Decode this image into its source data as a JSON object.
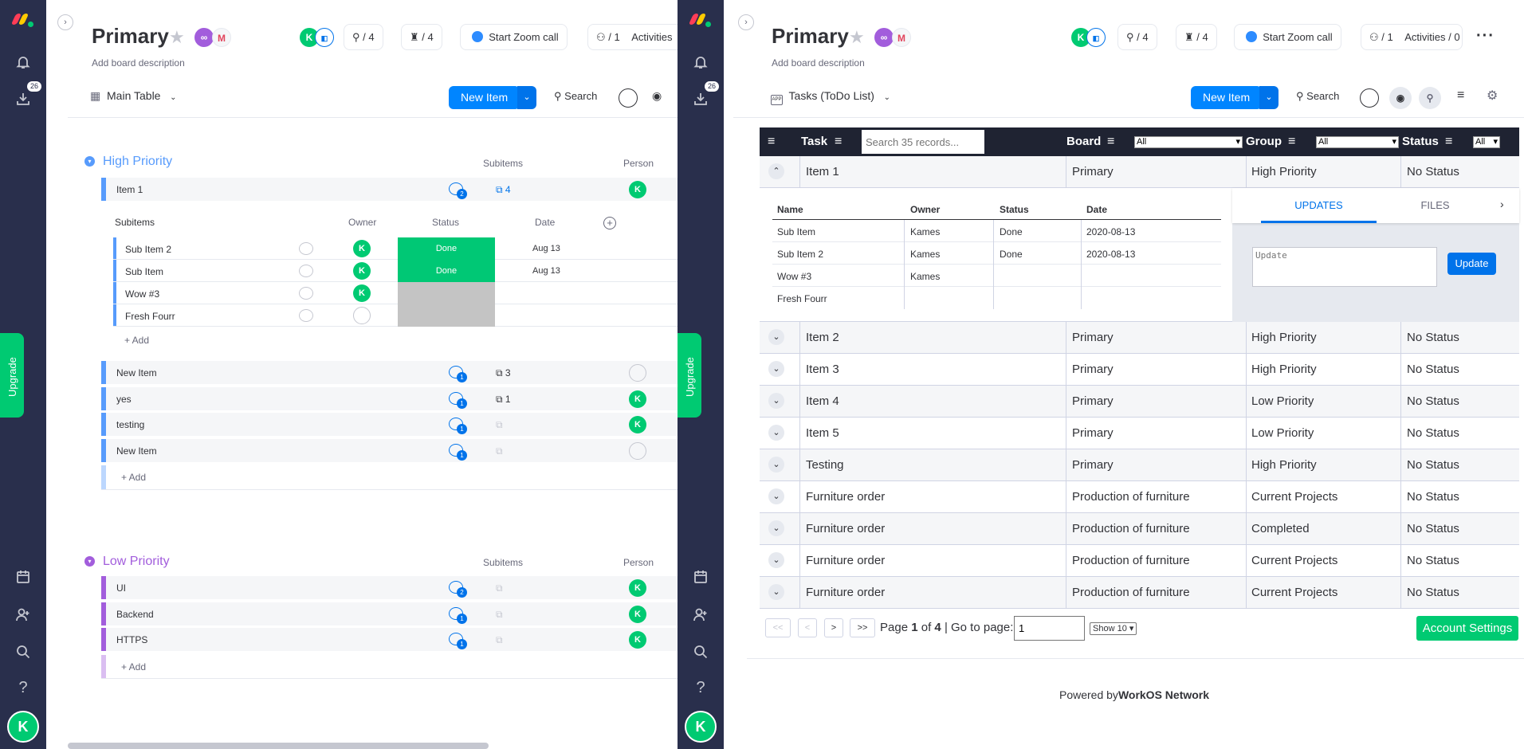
{
  "left": {
    "board_title": "Primary",
    "description": "Add board description",
    "avatar_initial": "K",
    "integrations_count": "/ 4",
    "automations_count": "/ 4",
    "zoom_label": "Start Zoom call",
    "members_count": "/ 1",
    "activities_label": "Activities",
    "view_label": "Main Table",
    "new_item": "New Item",
    "search": "Search",
    "badge": "26",
    "upgrade": "Upgrade",
    "groups": [
      {
        "title": "High Priority",
        "col_subitems": "Subitems",
        "col_person": "Person",
        "items": [
          {
            "name": "Item 1",
            "comments": "2",
            "subitems": "4"
          },
          {
            "name": "New Item",
            "comments": "1",
            "subitems": "3"
          },
          {
            "name": "yes",
            "comments": "1",
            "subitems": "1"
          },
          {
            "name": "testing",
            "comments": "1",
            "subitems": ""
          },
          {
            "name": "New Item",
            "comments": "1",
            "subitems": ""
          }
        ],
        "add": "+ Add"
      },
      {
        "title": "Low Priority",
        "col_subitems": "Subitems",
        "col_person": "Person",
        "items": [
          {
            "name": "UI",
            "comments": "2"
          },
          {
            "name": "Backend",
            "comments": "1"
          },
          {
            "name": "HTTPS",
            "comments": "1"
          }
        ],
        "add": "+ Add"
      }
    ],
    "subitems": {
      "headers": {
        "name": "Subitems",
        "owner": "Owner",
        "status": "Status",
        "date": "Date"
      },
      "rows": [
        {
          "name": "Sub Item 2",
          "status": "Done",
          "date": "Aug 13"
        },
        {
          "name": "Sub Item",
          "status": "Done",
          "date": "Aug 13"
        },
        {
          "name": "Wow #3",
          "status": "",
          "date": ""
        },
        {
          "name": "Fresh Fourr",
          "status": "",
          "date": ""
        }
      ],
      "add": "+ Add"
    }
  },
  "right": {
    "board_title": "Primary",
    "description": "Add board description",
    "avatar_initial": "K",
    "integrations_count": "/ 4",
    "automations_count": "/ 4",
    "zoom_label": "Start Zoom call",
    "members_count": "/ 1",
    "activities_label": "Activities / 0",
    "view_label": "Tasks (ToDo List)",
    "new_item": "New Item",
    "search": "Search",
    "badge": "26",
    "upgrade": "Upgrade",
    "table": {
      "headers": {
        "task": "Task",
        "board": "Board",
        "group": "Group",
        "status": "Status"
      },
      "search_placeholder": "Search 35 records...",
      "filter_all": "All",
      "rows": [
        {
          "task": "Item 1",
          "board": "Primary",
          "group": "High Priority",
          "status": "No Status"
        },
        {
          "task": "Item 2",
          "board": "Primary",
          "group": "High Priority",
          "status": "No Status"
        },
        {
          "task": "Item 3",
          "board": "Primary",
          "group": "High Priority",
          "status": "No Status"
        },
        {
          "task": "Item 4",
          "board": "Primary",
          "group": "Low Priority",
          "status": "No Status"
        },
        {
          "task": "Item 5",
          "board": "Primary",
          "group": "Low Priority",
          "status": "No Status"
        },
        {
          "task": "Testing",
          "board": "Primary",
          "group": "High Priority",
          "status": "No Status"
        },
        {
          "task": "Furniture order",
          "board": "Production of furniture",
          "group": "Current Projects",
          "status": "No Status"
        },
        {
          "task": "Furniture order",
          "board": "Production of furniture",
          "group": "Completed",
          "status": "No Status"
        },
        {
          "task": "Furniture order",
          "board": "Production of furniture",
          "group": "Current Projects",
          "status": "No Status"
        },
        {
          "task": "Furniture order",
          "board": "Production of furniture",
          "group": "Current Projects",
          "status": "No Status"
        }
      ],
      "expanded": {
        "headers": {
          "name": "Name",
          "owner": "Owner",
          "status": "Status",
          "date": "Date"
        },
        "rows": [
          {
            "name": "Sub Item",
            "owner": "Kames",
            "status": "Done",
            "date": "2020-08-13"
          },
          {
            "name": "Sub Item 2",
            "owner": "Kames",
            "status": "Done",
            "date": "2020-08-13"
          },
          {
            "name": "Wow #3",
            "owner": "Kames",
            "status": "",
            "date": ""
          },
          {
            "name": "Fresh Fourr",
            "owner": "",
            "status": "",
            "date": ""
          }
        ],
        "tab_updates": "UPDATES",
        "tab_files": "FILES",
        "update_placeholder": "Update",
        "update_button": "Update"
      }
    },
    "pagination": {
      "first": "<<",
      "prev": "<",
      "next": ">",
      "last": ">>",
      "page_prefix": "Page",
      "page_current": "1",
      "page_of": "of",
      "page_total": "4",
      "goto_label": "| Go to page:",
      "goto_value": "1",
      "show_label": "Show 10",
      "account_settings": "Account Settings"
    },
    "footer_prefix": "Powered by",
    "footer_brand": "WorkOS Network"
  },
  "colors": {
    "rail": "#292f4c",
    "accent": "#0085ff",
    "green": "#00ca72",
    "high": "#579bfc",
    "low": "#a25ddc",
    "done": "#00c875"
  }
}
